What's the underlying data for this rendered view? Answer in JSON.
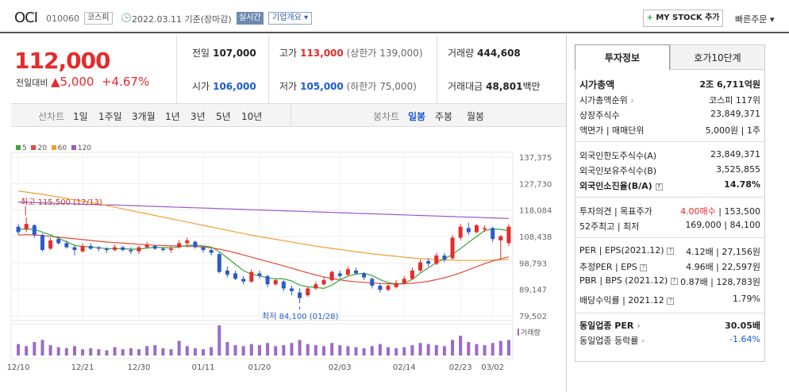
{
  "header": {
    "name": "OCI",
    "code": "010060",
    "market_tag": "코스피",
    "date": "2022.03.11 기준(장마감)",
    "realtime_tag": "실시간",
    "overview_tag": "기업개요",
    "mystock_label": "MY STOCK 추가",
    "quick_order": "빠른주문"
  },
  "price": {
    "current": "112,000",
    "change_label": "전일대비",
    "change_value": "5,000",
    "change_pct": "+4.67%"
  },
  "quotes": {
    "prev_label": "전일",
    "prev": "107,000",
    "high_label": "고가",
    "high": "113,000",
    "upper_limit": "(상한가 139,000)",
    "volume_label": "거래량",
    "volume": "444,608",
    "open_label": "시가",
    "open": "106,000",
    "low_label": "저가",
    "low": "105,000",
    "lower_limit": "(하한가 75,000)",
    "amount_label": "거래대금",
    "amount": "48,801",
    "amount_unit": "백만"
  },
  "periods": {
    "line_label": "선차트",
    "line_options": [
      "1일",
      "1주일",
      "3개월",
      "1년",
      "3년",
      "5년",
      "10년"
    ],
    "candle_label": "봉차트",
    "candle_options": [
      "일봉",
      "주봉",
      "월봉"
    ]
  },
  "chart_data": {
    "type": "candlestick",
    "ma_legend": [
      {
        "name": "5",
        "color": "#3aa53a"
      },
      {
        "name": "20",
        "color": "#e04a3a"
      },
      {
        "name": "60",
        "color": "#f0a030"
      },
      {
        "name": "120",
        "color": "#9a5ac8"
      }
    ],
    "y_ticks": [
      "137,375",
      "127,730",
      "118,084",
      "108,438",
      "98,793",
      "89,147",
      "79,502"
    ],
    "ylim": [
      79502,
      137375
    ],
    "x_ticks": [
      "12/10",
      "12/21",
      "12/30",
      "01/11",
      "01/20",
      "02/03",
      "02/14",
      "02/23",
      "03/02"
    ],
    "high_note": "최고 115,500 (12/13)",
    "low_note": "최저 84,100 (01/28)",
    "volume_label": "거래량",
    "candles": [
      {
        "o": 112000,
        "c": 110000,
        "h": 113000,
        "l": 109000
      },
      {
        "o": 111000,
        "c": 113000,
        "h": 115500,
        "l": 110000
      },
      {
        "o": 112500,
        "c": 109000,
        "h": 113000,
        "l": 108000
      },
      {
        "o": 109000,
        "c": 103500,
        "h": 109500,
        "l": 103000
      },
      {
        "o": 104000,
        "c": 107000,
        "h": 108000,
        "l": 103500
      },
      {
        "o": 107500,
        "c": 106000,
        "h": 108500,
        "l": 105500
      },
      {
        "o": 106000,
        "c": 104500,
        "h": 107000,
        "l": 104000
      },
      {
        "o": 104500,
        "c": 103500,
        "h": 105500,
        "l": 101500
      },
      {
        "o": 103000,
        "c": 105000,
        "h": 106000,
        "l": 102500
      },
      {
        "o": 105000,
        "c": 104000,
        "h": 106000,
        "l": 103500
      },
      {
        "o": 104500,
        "c": 104000,
        "h": 105000,
        "l": 103000
      },
      {
        "o": 104000,
        "c": 103500,
        "h": 104500,
        "l": 102500
      },
      {
        "o": 103500,
        "c": 104500,
        "h": 105500,
        "l": 103000
      },
      {
        "o": 104500,
        "c": 103500,
        "h": 105000,
        "l": 103000
      },
      {
        "o": 103500,
        "c": 103000,
        "h": 104500,
        "l": 102000
      },
      {
        "o": 103000,
        "c": 104500,
        "h": 105000,
        "l": 102000
      },
      {
        "o": 104500,
        "c": 105500,
        "h": 106500,
        "l": 104000
      },
      {
        "o": 105000,
        "c": 104000,
        "h": 105500,
        "l": 103500
      },
      {
        "o": 104000,
        "c": 103500,
        "h": 104500,
        "l": 103000
      },
      {
        "o": 103500,
        "c": 104000,
        "h": 105000,
        "l": 102500
      },
      {
        "o": 104500,
        "c": 106000,
        "h": 107000,
        "l": 104000
      },
      {
        "o": 106000,
        "c": 107000,
        "h": 108000,
        "l": 104500
      },
      {
        "o": 106500,
        "c": 104500,
        "h": 107000,
        "l": 104000
      },
      {
        "o": 104500,
        "c": 103500,
        "h": 105000,
        "l": 102500
      },
      {
        "o": 103500,
        "c": 102500,
        "h": 104000,
        "l": 101500
      },
      {
        "o": 102000,
        "c": 95500,
        "h": 102500,
        "l": 95000
      },
      {
        "o": 96000,
        "c": 94500,
        "h": 97500,
        "l": 93500
      },
      {
        "o": 95000,
        "c": 93000,
        "h": 96000,
        "l": 92500
      },
      {
        "o": 93000,
        "c": 92000,
        "h": 94000,
        "l": 91000
      },
      {
        "o": 92000,
        "c": 95500,
        "h": 96500,
        "l": 91500
      },
      {
        "o": 95000,
        "c": 94000,
        "h": 96000,
        "l": 93000
      },
      {
        "o": 94000,
        "c": 91000,
        "h": 94500,
        "l": 90000
      },
      {
        "o": 91000,
        "c": 92500,
        "h": 93000,
        "l": 90500
      },
      {
        "o": 92000,
        "c": 89500,
        "h": 92500,
        "l": 88500
      },
      {
        "o": 89500,
        "c": 88500,
        "h": 90500,
        "l": 87000
      },
      {
        "o": 88000,
        "c": 86000,
        "h": 89500,
        "l": 84100
      },
      {
        "o": 87000,
        "c": 89500,
        "h": 90000,
        "l": 86500
      },
      {
        "o": 89500,
        "c": 91000,
        "h": 92000,
        "l": 89000
      },
      {
        "o": 91000,
        "c": 92500,
        "h": 93500,
        "l": 90500
      },
      {
        "o": 92500,
        "c": 95500,
        "h": 96000,
        "l": 92000
      },
      {
        "o": 95000,
        "c": 94000,
        "h": 96000,
        "l": 93000
      },
      {
        "o": 94500,
        "c": 96500,
        "h": 97500,
        "l": 94000
      },
      {
        "o": 96000,
        "c": 95000,
        "h": 97000,
        "l": 94500
      },
      {
        "o": 95000,
        "c": 93500,
        "h": 95500,
        "l": 92500
      },
      {
        "o": 93000,
        "c": 90500,
        "h": 93500,
        "l": 89500
      },
      {
        "o": 90500,
        "c": 89000,
        "h": 91500,
        "l": 88000
      },
      {
        "o": 89000,
        "c": 90500,
        "h": 91000,
        "l": 88500
      },
      {
        "o": 90000,
        "c": 91500,
        "h": 92500,
        "l": 89500
      },
      {
        "o": 91500,
        "c": 93000,
        "h": 94000,
        "l": 91000
      },
      {
        "o": 93000,
        "c": 96000,
        "h": 97000,
        "l": 92500
      },
      {
        "o": 96000,
        "c": 99000,
        "h": 100000,
        "l": 95500
      },
      {
        "o": 99500,
        "c": 98500,
        "h": 100500,
        "l": 97500
      },
      {
        "o": 98500,
        "c": 101500,
        "h": 102500,
        "l": 98000
      },
      {
        "o": 101500,
        "c": 100000,
        "h": 102500,
        "l": 99000
      },
      {
        "o": 100500,
        "c": 108000,
        "h": 109000,
        "l": 100000
      },
      {
        "o": 108000,
        "c": 112000,
        "h": 113000,
        "l": 107000
      },
      {
        "o": 111500,
        "c": 110000,
        "h": 113500,
        "l": 109000
      },
      {
        "o": 110000,
        "c": 112500,
        "h": 113000,
        "l": 109500
      },
      {
        "o": 111000,
        "c": 111500,
        "h": 112500,
        "l": 110000
      },
      {
        "o": 111500,
        "c": 107500,
        "h": 112000,
        "l": 106500
      },
      {
        "o": 107000,
        "c": 108500,
        "h": 109000,
        "l": 100500
      },
      {
        "o": 106000,
        "c": 112000,
        "h": 113000,
        "l": 105000
      }
    ],
    "ma5": [
      111000,
      111200,
      111000,
      110000,
      109000,
      107800,
      106500,
      105200,
      104800,
      104600,
      104300,
      104000,
      104000,
      104000,
      103800,
      103800,
      104200,
      104500,
      104400,
      104300,
      104600,
      105200,
      105300,
      105000,
      104600,
      102900,
      100600,
      98300,
      96000,
      94700,
      94100,
      93300,
      93000,
      93000,
      92200,
      90700,
      90100,
      89900,
      89500,
      90700,
      92600,
      94000,
      94700,
      95000,
      94200,
      92700,
      91600,
      91100,
      91400,
      92800,
      95100,
      97000,
      98900,
      100300,
      101900,
      104000,
      106300,
      108400,
      110600,
      111200,
      111000,
      110500
    ],
    "ma20": [
      109000,
      109100,
      109000,
      108800,
      108500,
      108200,
      107900,
      107600,
      107300,
      107000,
      106700,
      106400,
      106200,
      106000,
      105800,
      105600,
      105400,
      105200,
      105100,
      105000,
      105000,
      104900,
      104800,
      104600,
      104300,
      103800,
      103200,
      102500,
      101700,
      100900,
      100100,
      99300,
      98500,
      97700,
      96900,
      96000,
      95200,
      94400,
      93700,
      93100,
      92600,
      92200,
      91900,
      91700,
      91500,
      91300,
      91200,
      91100,
      91200,
      91400,
      91700,
      92100,
      92700,
      93400,
      94200,
      95200,
      96300,
      97400,
      98500,
      99500,
      100300,
      101000
    ],
    "ma60": [
      125000,
      124600,
      124200,
      123800,
      123300,
      122800,
      122300,
      121800,
      121300,
      120800,
      120300,
      119700,
      119100,
      118500,
      117900,
      117300,
      116700,
      116100,
      115500,
      114900,
      114300,
      113700,
      113100,
      112500,
      111900,
      111300,
      110700,
      110100,
      109500,
      108900,
      108400,
      107900,
      107400,
      106900,
      106400,
      105900,
      105400,
      104900,
      104500,
      104100,
      103700,
      103300,
      102900,
      102500,
      102100,
      101800,
      101500,
      101200,
      100900,
      100600,
      100400,
      100200,
      100000,
      99900,
      99800,
      99700,
      99700,
      99700,
      99700,
      99800,
      99900,
      100000
    ],
    "ma120": [
      121000,
      120900,
      120800,
      120700,
      120600,
      120500,
      120400,
      120300,
      120200,
      120100,
      120000,
      119900,
      119900,
      119800,
      119700,
      119600,
      119500,
      119400,
      119300,
      119200,
      119100,
      119000,
      118900,
      118800,
      118700,
      118600,
      118500,
      118400,
      118300,
      118200,
      118100,
      118000,
      117900,
      117800,
      117700,
      117600,
      117500,
      117400,
      117300,
      117200,
      117100,
      117000,
      116900,
      116800,
      116700,
      116600,
      116500,
      116400,
      116300,
      116200,
      116100,
      116000,
      115900,
      115800,
      115700,
      115600,
      115500,
      115400,
      115300,
      115200,
      115100,
      115000
    ],
    "volumes": [
      22,
      18,
      26,
      30,
      20,
      16,
      14,
      18,
      12,
      14,
      12,
      10,
      16,
      12,
      14,
      12,
      18,
      20,
      14,
      12,
      28,
      18,
      14,
      12,
      16,
      58,
      26,
      20,
      18,
      22,
      20,
      24,
      18,
      20,
      24,
      30,
      22,
      20,
      18,
      24,
      20,
      18,
      16,
      14,
      18,
      22,
      16,
      14,
      16,
      20,
      24,
      22,
      20,
      18,
      30,
      38,
      26,
      22,
      20,
      24,
      28,
      30
    ]
  },
  "tabs": {
    "active": "투자정보",
    "other": "호가10단계"
  },
  "invest": {
    "market_cap_label": "시가총액",
    "market_cap": "2조 6,711억원",
    "cap_rank_label": "시가총액순위",
    "cap_rank": "코스피 117위",
    "shares_label": "상장주식수",
    "shares": "23,849,371",
    "par_label": "액면가 | 매매단위",
    "par": "5,000원 | 1주",
    "foreign_limit_label": "외국인한도주식수(A)",
    "foreign_limit": "23,849,371",
    "foreign_hold_label": "외국인보유주식수(B)",
    "foreign_hold": "3,525,855",
    "foreign_ratio_label": "외국인소진율(B/A)",
    "foreign_ratio": "14.78%",
    "opinion_label": "투자의견 | 목표주가",
    "opinion": "4.00매수",
    "target": "153,500",
    "week52_label": "52주최고 | 최저",
    "week52": "169,000 | 84,100",
    "per_label": "PER | EPS(2021.12)",
    "per": "4.12배 | 27,156원",
    "est_per_label": "추정PER | EPS",
    "est_per": "4.96배 | 22,597원",
    "pbr_label": "PBR | BPS (2021.12)",
    "pbr": "0.87배 | 128,783원",
    "div_label": "배당수익률 | 2021.12",
    "div": "1.79%",
    "sector_per_label": "동일업종 PER",
    "sector_per": "30.05배",
    "sector_chg_label": "동일업종 등락률",
    "sector_chg": "-1.64%"
  }
}
